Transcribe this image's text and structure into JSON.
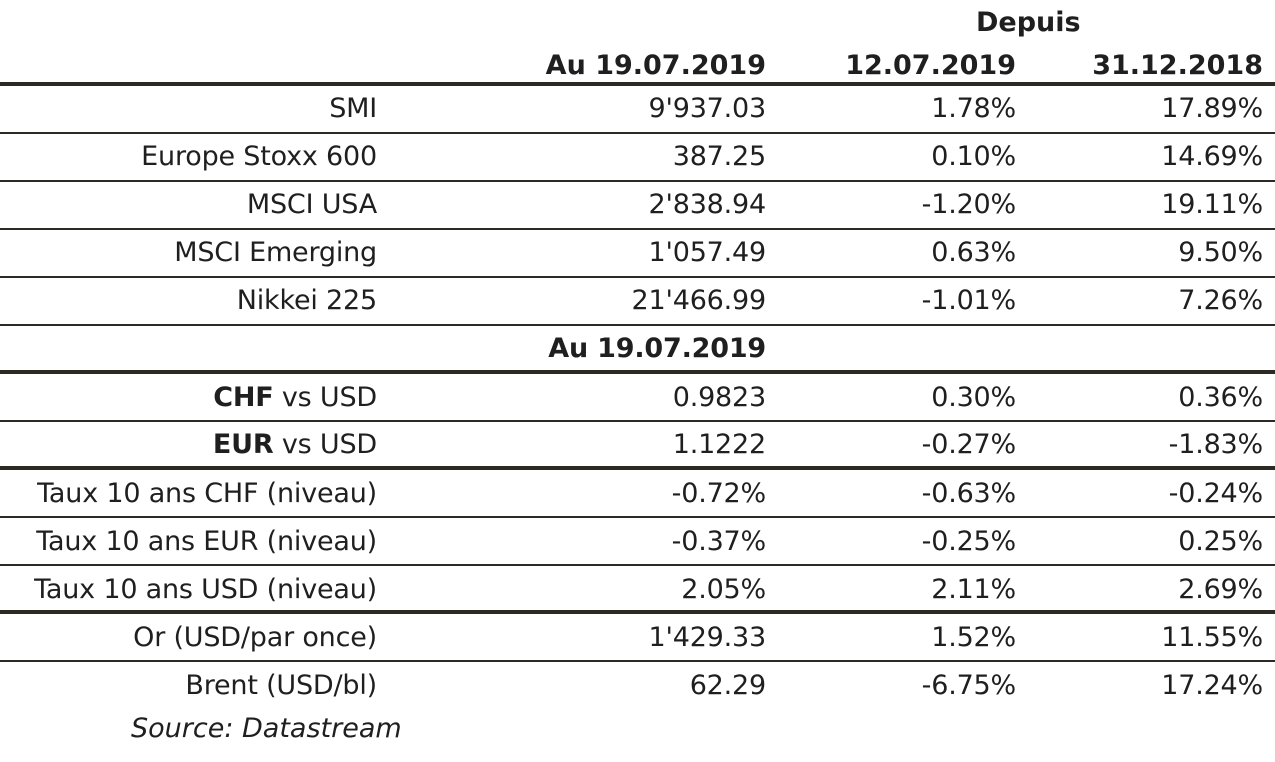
{
  "header": {
    "depuis": "Depuis",
    "col_current": "Au 19.07.2019",
    "col_week": "12.07.2019",
    "col_ytd": "31.12.2018"
  },
  "section2_header": "Au 19.07.2019",
  "rows": [
    {
      "label": "SMI",
      "value": "9'937.03",
      "week": "1.78%",
      "ytd": "17.89%"
    },
    {
      "label": "Europe Stoxx 600",
      "value": "387.25",
      "week": "0.10%",
      "ytd": "14.69%"
    },
    {
      "label": "MSCI USA",
      "value": "2'838.94",
      "week": "-1.20%",
      "ytd": "19.11%"
    },
    {
      "label": "MSCI Emerging",
      "value": "1'057.49",
      "week": "0.63%",
      "ytd": "9.50%"
    },
    {
      "label": "Nikkei 225",
      "value": "21'466.99",
      "week": "-1.01%",
      "ytd": "7.26%"
    },
    {
      "label_bold": "CHF",
      "label_rest": " vs USD",
      "value": "0.9823",
      "week": "0.30%",
      "ytd": "0.36%"
    },
    {
      "label_bold": "EUR",
      "label_rest": " vs USD",
      "value": "1.1222",
      "week": "-0.27%",
      "ytd": "-1.83%"
    },
    {
      "label": "Taux 10 ans CHF (niveau)",
      "value": "-0.72%",
      "week": "-0.63%",
      "ytd": "-0.24%"
    },
    {
      "label": "Taux 10 ans EUR (niveau)",
      "value": "-0.37%",
      "week": "-0.25%",
      "ytd": "0.25%"
    },
    {
      "label": "Taux 10 ans USD (niveau)",
      "value": "2.05%",
      "week": "2.11%",
      "ytd": "2.69%"
    },
    {
      "label": "Or (USD/par once)",
      "value": "1'429.33",
      "week": "1.52%",
      "ytd": "11.55%"
    },
    {
      "label": "Brent (USD/bl)",
      "value": "62.29",
      "week": "-6.75%",
      "ytd": "17.24%"
    }
  ],
  "source": "Source: Datastream"
}
